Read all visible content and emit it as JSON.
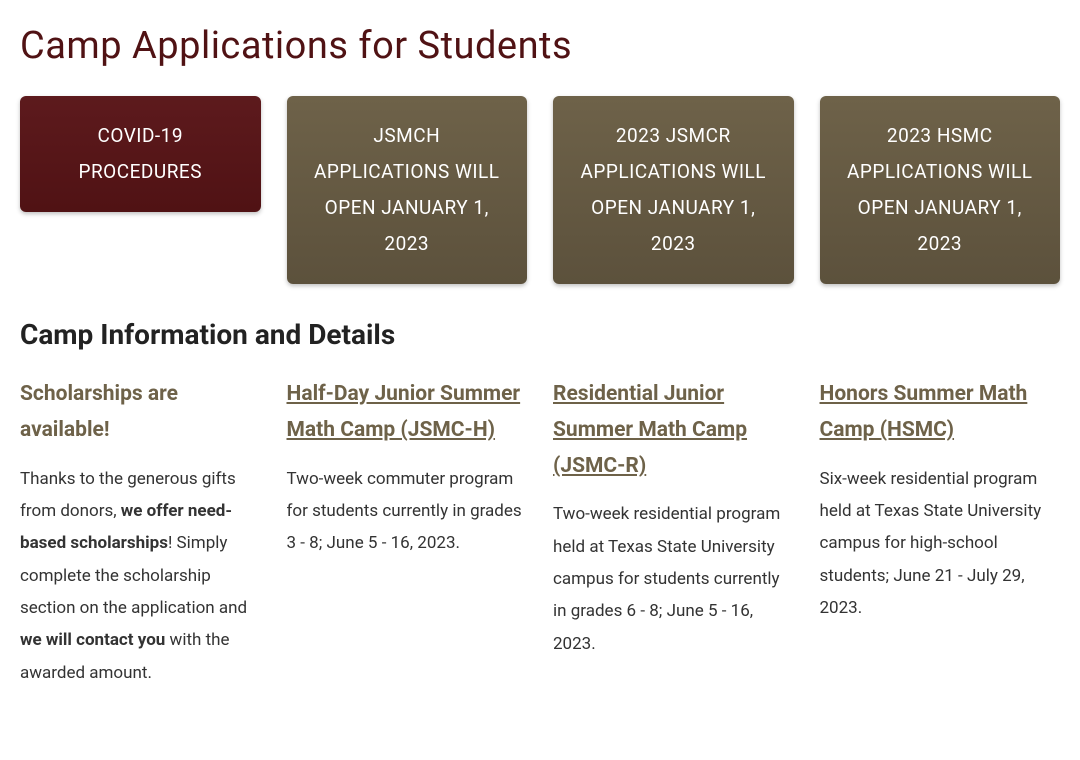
{
  "page": {
    "title": "Camp Applications for Students",
    "section_title": "Camp Information and Details"
  },
  "colors": {
    "maroon_top": "#5d1a1d",
    "maroon_bottom": "#501214",
    "brown_top": "#6e6249",
    "brown_bottom": "#5c513c",
    "heading_link": "#6e6249",
    "body_text": "#333333",
    "bg": "#ffffff"
  },
  "tiles": [
    {
      "label": "COVID-19 PROCEDURES",
      "style": "maroon"
    },
    {
      "label": "JSMCH APPLICATIONS WILL OPEN JANUARY 1, 2023",
      "style": "brown"
    },
    {
      "label": "2023 JSMCR APPLICATIONS WILL OPEN JANUARY 1, 2023",
      "style": "brown"
    },
    {
      "label": "2023 HSMC APPLICATIONS WILL OPEN JANUARY 1, 2023",
      "style": "brown"
    }
  ],
  "columns": [
    {
      "heading": "Scholarships are available!",
      "is_link": false,
      "body_segments": [
        {
          "text": "Thanks to the generous gifts from donors, ",
          "bold": false
        },
        {
          "text": "we offer need-based scholarships",
          "bold": true
        },
        {
          "text": "!  Simply complete the scholarship section on the application and ",
          "bold": false
        },
        {
          "text": "we will contact you",
          "bold": true
        },
        {
          "text": " with the awarded amount.",
          "bold": false
        }
      ]
    },
    {
      "heading": "Half-Day Junior Summer Math Camp (JSMC-H)",
      "is_link": true,
      "body_segments": [
        {
          "text": "Two-week commuter program for students currently in grades 3  - 8; June 5 - 16, 2023.",
          "bold": false
        }
      ]
    },
    {
      "heading": "Residential Junior Summer Math Camp (JSMC-R)",
      "is_link": true,
      "body_segments": [
        {
          "text": "Two-week residential program held at Texas State University campus for students currently in grades 6  - 8;  June 5 - 16, 2023.",
          "bold": false
        }
      ]
    },
    {
      "heading": "Honors Summer Math Camp (HSMC)",
      "is_link": true,
      "body_segments": [
        {
          "text": "Six-week residential program held at Texas State University campus for high-school students; June 21 - July 29, 2023.",
          "bold": false
        }
      ]
    }
  ]
}
